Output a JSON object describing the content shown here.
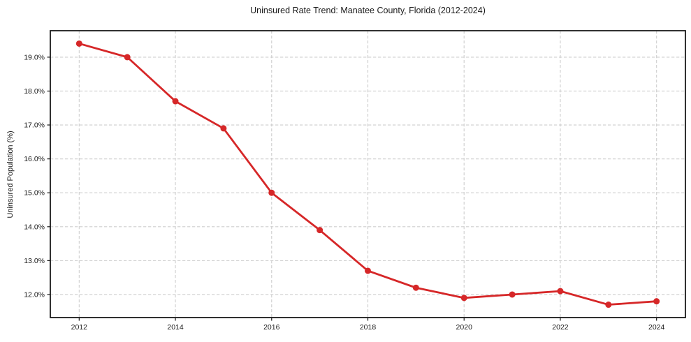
{
  "chart_data": {
    "type": "line",
    "title": "Uninsured Rate Trend: Manatee County, Florida (2012-2024)",
    "xlabel": "",
    "ylabel": "Uninsured Population (%)",
    "x": [
      2012,
      2013,
      2014,
      2015,
      2016,
      2017,
      2018,
      2019,
      2020,
      2021,
      2022,
      2023,
      2024
    ],
    "values": [
      19.4,
      19.0,
      17.7,
      16.9,
      15.0,
      13.9,
      12.7,
      12.2,
      11.9,
      12.0,
      12.1,
      11.7,
      11.8
    ],
    "xlim": [
      2011.4,
      2024.6
    ],
    "ylim": [
      11.32,
      19.78
    ],
    "xticks": [
      2012,
      2014,
      2016,
      2018,
      2020,
      2022,
      2024
    ],
    "xtick_labels": [
      "2012",
      "2014",
      "2016",
      "2018",
      "2020",
      "2022",
      "2024"
    ],
    "yticks": [
      12,
      13,
      14,
      15,
      16,
      17,
      18,
      19
    ],
    "ytick_labels": [
      "12.0%",
      "13.0%",
      "14.0%",
      "15.0%",
      "16.0%",
      "17.0%",
      "18.0%",
      "19.0%"
    ],
    "grid": true,
    "legend": null,
    "colors": {
      "line": "#d62728",
      "marker": "#d62728",
      "grid": "#cdcdcd",
      "spine": "#1a1a1a",
      "background": "#ffffff"
    }
  }
}
